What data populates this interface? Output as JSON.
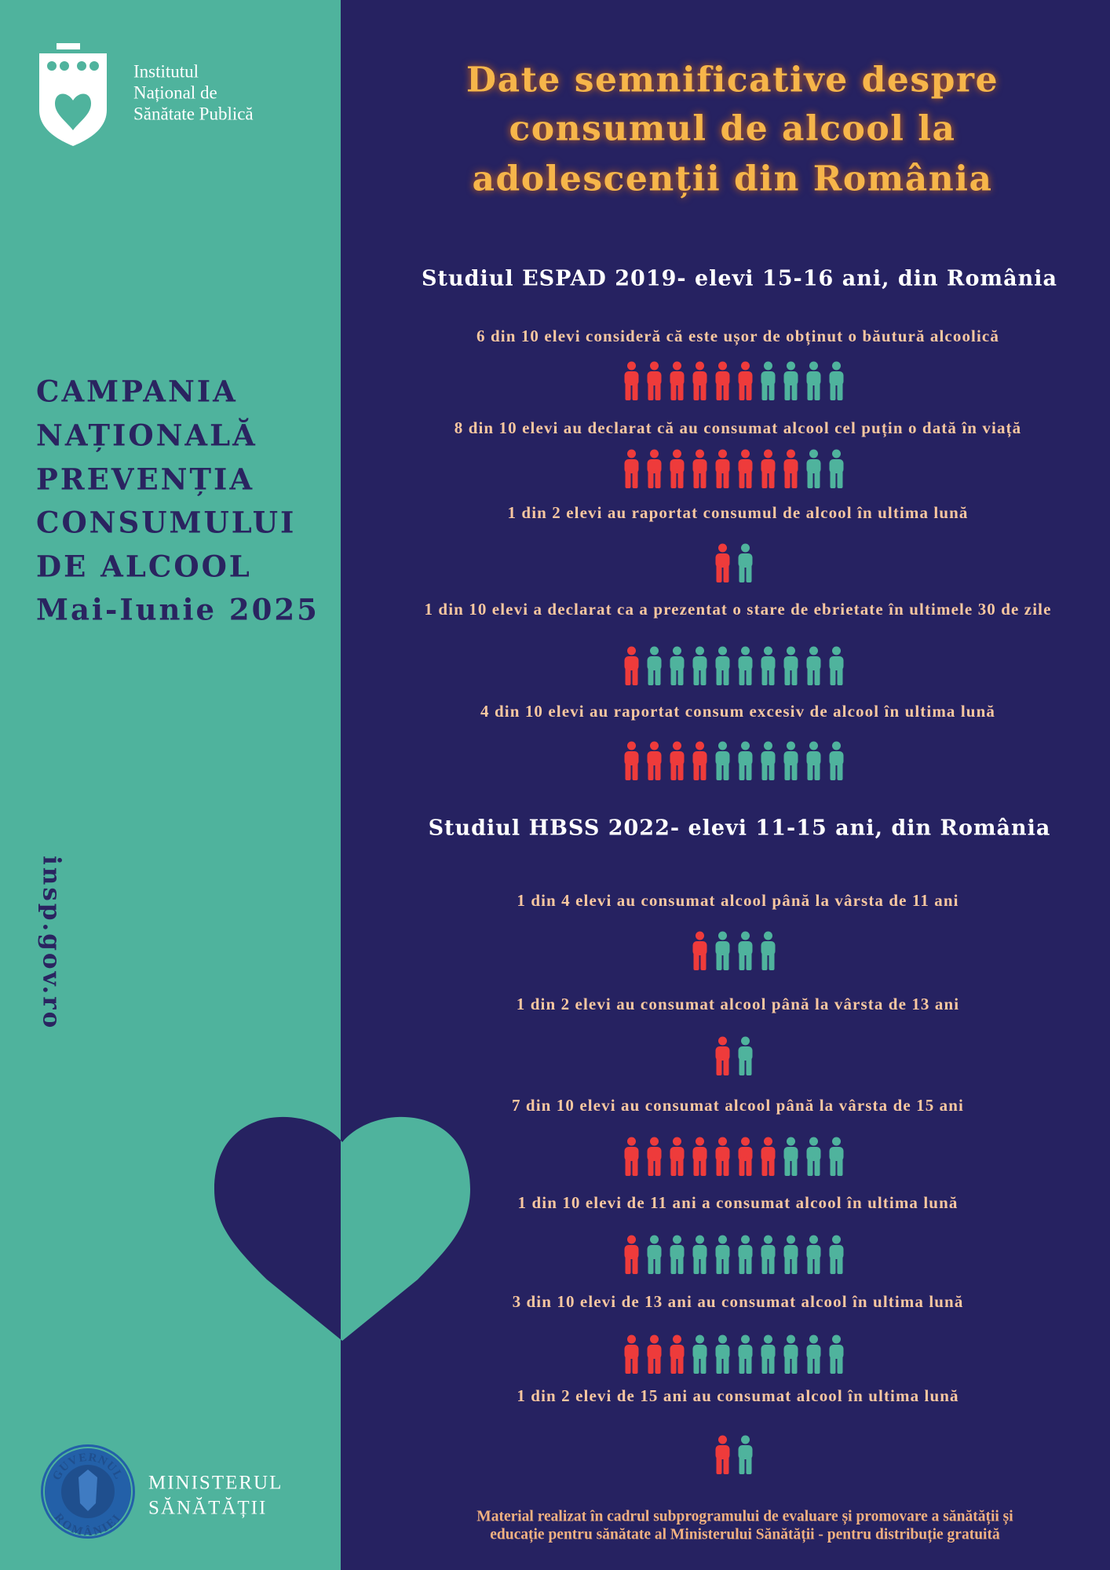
{
  "logo": {
    "lines": [
      "Institutul",
      "Național de",
      "Sănătate Publică"
    ]
  },
  "campaign": {
    "lines": [
      "CAMPANIA",
      "NAȚIONALĂ",
      "PREVENȚIA",
      "CONSUMULUI",
      "DE ALCOOL",
      "Mai-Iunie 2025"
    ]
  },
  "website": "insp.gov.ro",
  "ministry": {
    "lines": [
      "MINISTERUL",
      "SĂNĂTĂȚII"
    ],
    "emblem_text": [
      "GUVERNUL",
      "ROMÂNIEI"
    ]
  },
  "title": {
    "lines": [
      "Date semnificative despre",
      "consumul de alcool la",
      "adolescenții din România"
    ]
  },
  "sections": [
    {
      "heading": "Studiul ESPAD 2019- elevi 15-16 ani, din România",
      "stats": [
        {
          "text": "6 din 10 elevi consideră că este ușor de obținut o băutură alcoolică",
          "icons": {
            "red": 6,
            "teal": 4
          }
        },
        {
          "text": "8 din 10 elevi au declarat că au consumat alcool cel puțin o dată în viață",
          "icons": {
            "red": 8,
            "teal": 2
          }
        },
        {
          "text": "1 din 2 elevi au raportat consumul de alcool în ultima lună",
          "icons": {
            "red": 1,
            "teal": 1
          }
        },
        {
          "text": "1 din 10 elevi a declarat ca a prezentat o stare de ebrietate în ultimele 30 de zile",
          "icons": {
            "red": 1,
            "teal": 9
          }
        },
        {
          "text": "4 din 10 elevi au raportat consum excesiv de alcool în ultima lună",
          "icons": {
            "red": 4,
            "teal": 6
          }
        }
      ]
    },
    {
      "heading": "Studiul HBSS 2022- elevi 11-15 ani, din România",
      "stats": [
        {
          "text": "1 din 4 elevi au consumat alcool până la vârsta de 11 ani",
          "icons": {
            "red": 1,
            "teal": 3
          }
        },
        {
          "text": "1 din 2 elevi au consumat alcool până la vârsta de 13 ani",
          "icons": {
            "red": 1,
            "teal": 1
          }
        },
        {
          "text": "7 din 10 elevi au consumat alcool până la vârsta de 15 ani",
          "icons": {
            "red": 7,
            "teal": 3
          }
        },
        {
          "text": "1 din 10 elevi de 11 ani a consumat alcool în ultima lună",
          "icons": {
            "red": 1,
            "teal": 9
          }
        },
        {
          "text": "3 din 10 elevi de 13 ani au consumat alcool în ultima lună",
          "icons": {
            "red": 3,
            "teal": 7
          }
        },
        {
          "text": "1 din 2 elevi de 15 ani au consumat alcool în ultima lună",
          "icons": {
            "red": 1,
            "teal": 1
          }
        }
      ]
    }
  ],
  "footer": {
    "lines": [
      "Material realizat în cadrul subprogramului de evaluare și promovare a sănătății și",
      "educație pentru sănătate al Ministerului Sănătății - pentru distribuție gratuită"
    ]
  }
}
